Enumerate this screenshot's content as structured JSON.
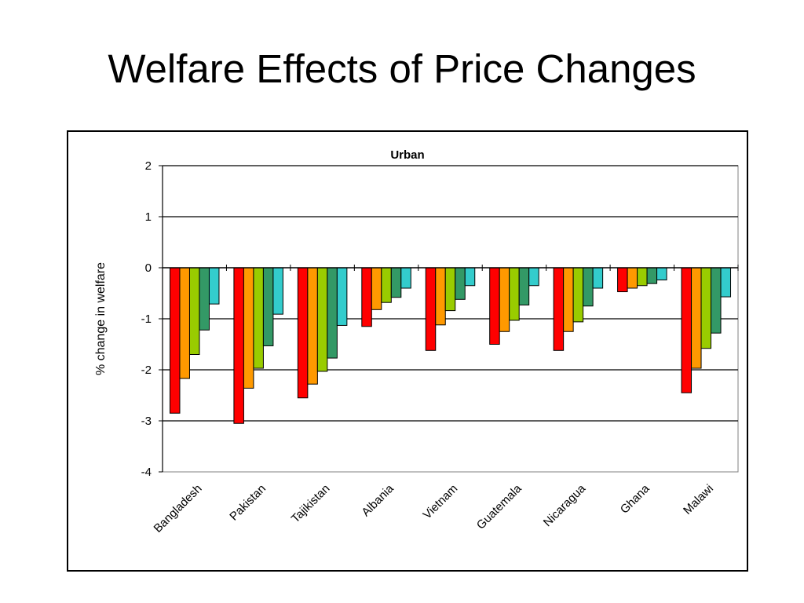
{
  "slide": {
    "title": "Welfare Effects of Price Changes"
  },
  "chart_data": {
    "type": "bar",
    "title": "Urban",
    "xlabel": "",
    "ylabel": "% change in welfare",
    "ylim": [
      -4,
      2
    ],
    "yticks": [
      2,
      1,
      0,
      -1,
      -2,
      -3,
      -4
    ],
    "grid": true,
    "categories": [
      "Bangladesh",
      "Pakistan",
      "Tajikistan",
      "Albania",
      "Vietnam",
      "Guatemala",
      "Nicaragua",
      "Ghana",
      "Malawi"
    ],
    "series": [
      {
        "color": "#ff0000",
        "values": [
          -2.85,
          -3.05,
          -2.55,
          -1.15,
          -1.62,
          -1.5,
          -1.62,
          -0.47,
          -2.45
        ]
      },
      {
        "color": "#ff9900",
        "values": [
          -2.17,
          -2.36,
          -2.28,
          -0.82,
          -1.12,
          -1.25,
          -1.25,
          -0.4,
          -1.97
        ]
      },
      {
        "color": "#99cc00",
        "values": [
          -1.7,
          -1.97,
          -2.03,
          -0.68,
          -0.84,
          -1.03,
          -1.06,
          -0.35,
          -1.58
        ]
      },
      {
        "color": "#339966",
        "values": [
          -1.22,
          -1.53,
          -1.77,
          -0.58,
          -0.62,
          -0.73,
          -0.75,
          -0.31,
          -1.28
        ]
      },
      {
        "color": "#33cccc",
        "values": [
          -0.71,
          -0.91,
          -1.13,
          -0.4,
          -0.35,
          -0.35,
          -0.4,
          -0.24,
          -0.57
        ]
      }
    ]
  }
}
